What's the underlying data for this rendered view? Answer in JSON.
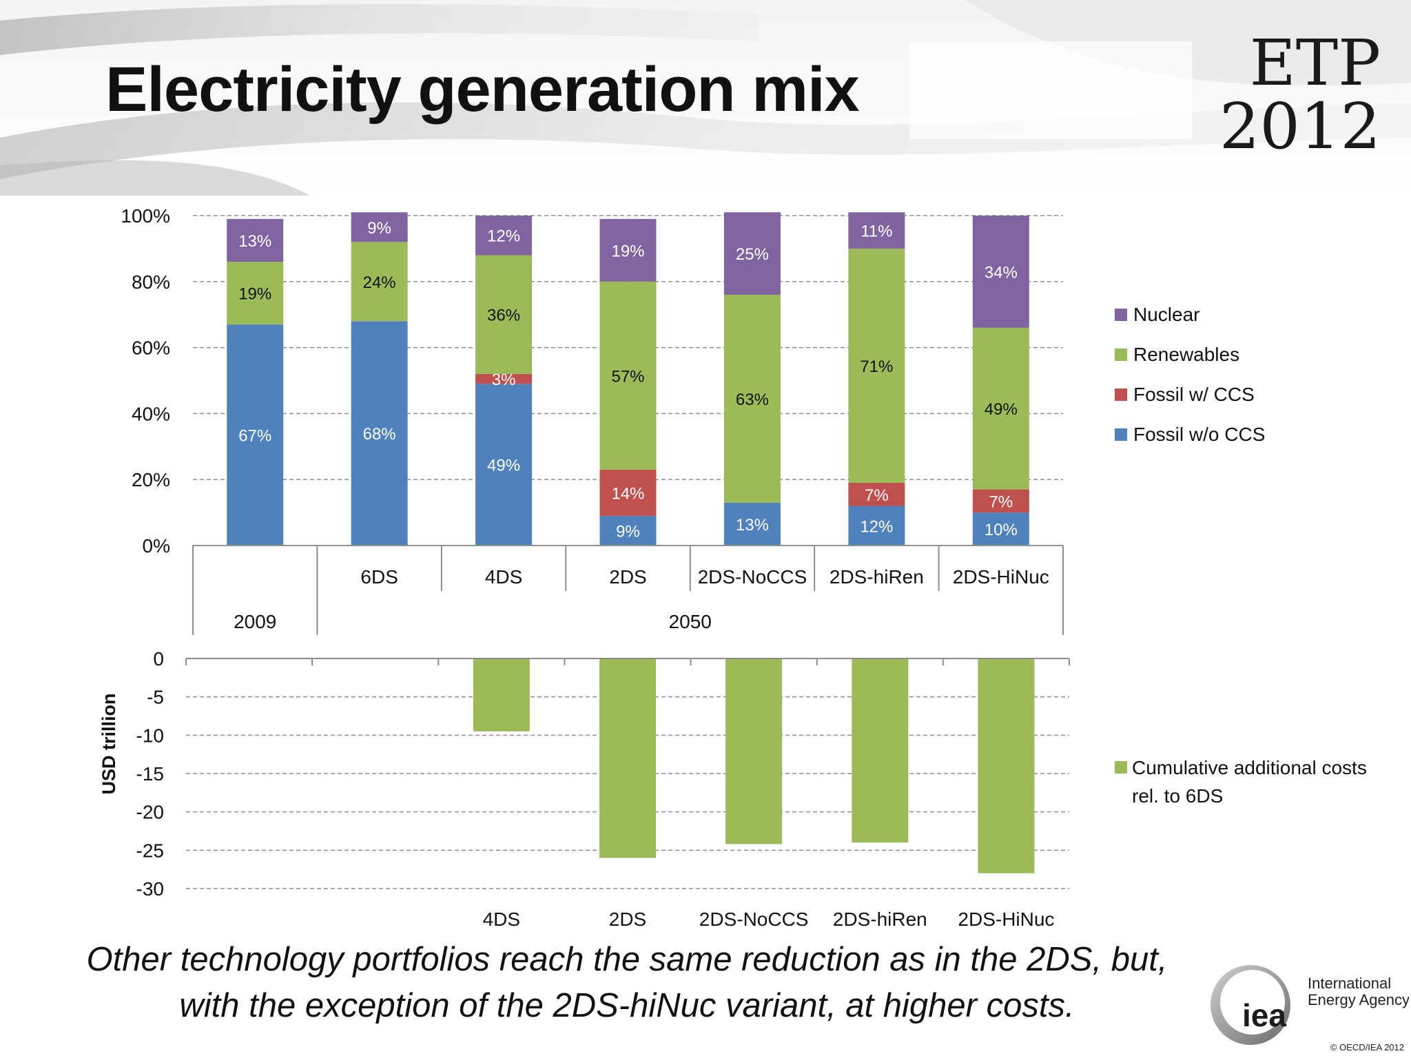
{
  "header": {
    "title": "Electricity generation mix",
    "brand_line1": "ETP",
    "brand_line2": "2012"
  },
  "footer": {
    "note_line1": "Other technology portfolios  reach the same reduction as in the 2DS, but,",
    "note_line2": "with the exception of the 2DS-hiNuc variant, at higher costs.",
    "logo_text": "iea",
    "org_line1": "International",
    "org_line2": "Energy Agency",
    "copyright": "© OECD/IEA 2012"
  },
  "chart_data": [
    {
      "type": "bar",
      "stacked": true,
      "categories": [
        "",
        "6DS",
        "4DS",
        "2DS",
        "2DS-NoCCS",
        "2DS-hiRen",
        "2DS-HiNuc"
      ],
      "category_groups": [
        {
          "label": "2009",
          "span": 1
        },
        {
          "label": "2050",
          "span": 6
        }
      ],
      "ylim": [
        0,
        100
      ],
      "yticks": [
        "0%",
        "20%",
        "40%",
        "60%",
        "80%",
        "100%"
      ],
      "grid": true,
      "legend_position": "right",
      "series": [
        {
          "name": "Fossil w/o CCS",
          "color": "#4f81bd",
          "values": [
            67,
            68,
            49,
            9,
            13,
            12,
            10
          ],
          "labels": [
            "67%",
            "68%",
            "49%",
            "9%",
            "13%",
            "12%",
            "10%"
          ]
        },
        {
          "name": "Fossil w/ CCS",
          "color": "#c0504d",
          "values": [
            0,
            0,
            3,
            14,
            0,
            7,
            7
          ],
          "labels": [
            "",
            "",
            "3%",
            "14%",
            "",
            "7%",
            "7%"
          ]
        },
        {
          "name": "Renewables",
          "color": "#9bbb59",
          "values": [
            19,
            24,
            36,
            57,
            63,
            71,
            49
          ],
          "labels": [
            "19%",
            "24%",
            "36%",
            "57%",
            "63%",
            "71%",
            "49%"
          ]
        },
        {
          "name": "Nuclear",
          "color": "#8064a2",
          "values": [
            13,
            9,
            12,
            19,
            25,
            11,
            34
          ],
          "labels": [
            "13%",
            "9%",
            "12%",
            "19%",
            "25%",
            "11%",
            "34%"
          ]
        }
      ]
    },
    {
      "type": "bar",
      "categories": [
        "",
        "",
        "4DS",
        "2DS",
        "2DS-NoCCS",
        "2DS-hiRen",
        "2DS-HiNuc"
      ],
      "ylabel": "USD trillion",
      "ylim": [
        -30,
        0
      ],
      "yticks": [
        "0",
        "-5",
        "-10",
        "-15",
        "-20",
        "-25",
        "-30"
      ],
      "grid": true,
      "legend_position": "right",
      "series": [
        {
          "name": "Cumulative additional costs rel. to 6DS",
          "color": "#9bbb59",
          "values": [
            0,
            0,
            -9.5,
            -26,
            -24.2,
            -24,
            -28
          ]
        }
      ],
      "legend_lines": [
        "Cumulative additional costs",
        "rel. to 6DS"
      ]
    }
  ]
}
